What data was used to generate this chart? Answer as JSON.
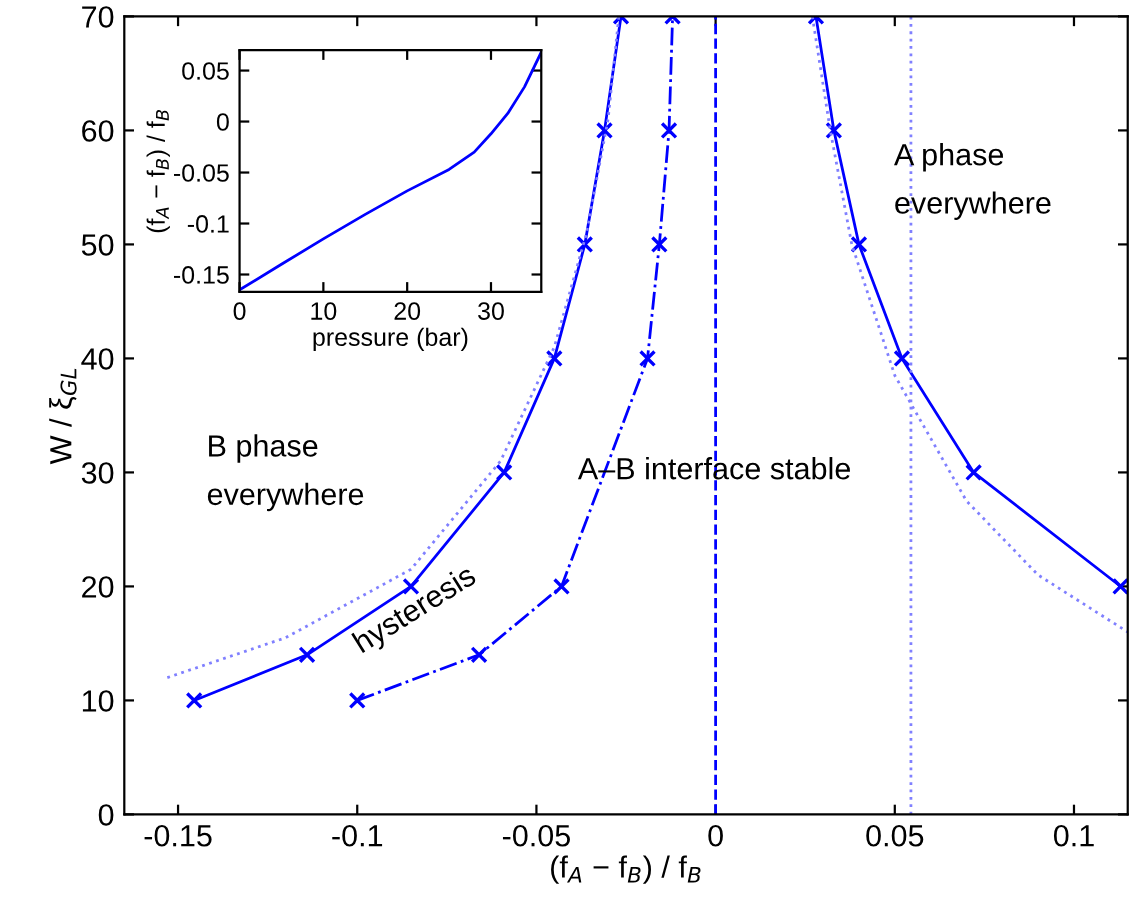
{
  "chart_data": [
    {
      "type": "line",
      "xlabel": "(f$_{A}$ − f$_{B}$) / f$_{B}$",
      "ylabel": "W / ξ$_{GL}$",
      "xlim": [
        -0.165,
        0.115
      ],
      "ylim": [
        0,
        70
      ],
      "xticks": [
        -0.15,
        -0.1,
        -0.05,
        0,
        0.05,
        0.1
      ],
      "yticks": [
        0,
        10,
        20,
        30,
        40,
        50,
        60,
        70
      ],
      "grid": false,
      "legend": false,
      "series": [
        {
          "color": "#0000ff",
          "line_style": "solid",
          "marker": "cross",
          "x": [
            -0.1455,
            -0.114,
            -0.085,
            -0.059,
            -0.045,
            -0.0365,
            -0.031,
            -0.0264
          ],
          "values": [
            10,
            14,
            20,
            30,
            40,
            50,
            60,
            70
          ]
        },
        {
          "color": "#0000ff",
          "line_style": "solid",
          "marker": "cross",
          "x": [
            0.028,
            0.033,
            0.04,
            0.052,
            0.072,
            0.113
          ],
          "values": [
            70,
            60,
            50,
            40,
            30,
            20
          ]
        },
        {
          "color": "#0000ff",
          "line_style": "dashdot",
          "marker": "cross",
          "x": [
            -0.1,
            -0.066,
            -0.043,
            -0.019,
            -0.0157,
            -0.013,
            -0.012
          ],
          "values": [
            10,
            14,
            20,
            40,
            50,
            60,
            70
          ]
        },
        {
          "color": "#8080ff",
          "line_style": "dotted",
          "marker": "none",
          "x": [
            -0.153,
            -0.12,
            -0.085,
            -0.06,
            -0.045,
            -0.036,
            -0.03,
            -0.027
          ],
          "values": [
            12,
            15.5,
            21.5,
            31,
            41,
            51,
            61,
            70
          ]
        },
        {
          "color": "#8080ff",
          "line_style": "dotted",
          "marker": "none",
          "x": [
            0.027,
            0.032,
            0.038,
            0.05,
            0.07,
            0.09,
            0.115
          ],
          "values": [
            70,
            60,
            50,
            38.5,
            27.5,
            21,
            16
          ]
        }
      ],
      "ref_lines": [
        {
          "axis": "x",
          "value": 0,
          "color": "#0000ff",
          "line_style": "dashed"
        },
        {
          "axis": "x",
          "value": 0.0545,
          "color": "#8080ff",
          "line_style": "dotted"
        }
      ],
      "annotations": [
        "B phase\neverywhere",
        "A–B interface stable",
        "A phase\neverywhere",
        "hysteresis"
      ]
    },
    {
      "type": "line",
      "xlabel": "pressure (bar)",
      "ylabel": "(f$_{A}$ − f$_{B}$) / f$_{B}$",
      "xlim": [
        0,
        36
      ],
      "ylim": [
        -0.167,
        0.07
      ],
      "xticks": [
        0,
        10,
        20,
        30
      ],
      "yticks": [
        -0.15,
        -0.1,
        -0.05,
        0,
        0.05
      ],
      "grid": false,
      "legend": false,
      "series": [
        {
          "color": "#0000ff",
          "line_style": "solid",
          "marker": "none",
          "x": [
            0,
            5,
            10,
            15,
            20,
            25,
            28,
            30,
            32,
            34,
            36
          ],
          "values": [
            -0.165,
            -0.14,
            -0.115,
            -0.091,
            -0.068,
            -0.047,
            -0.03,
            -0.012,
            0.008,
            0.034,
            0.068
          ]
        }
      ]
    }
  ]
}
